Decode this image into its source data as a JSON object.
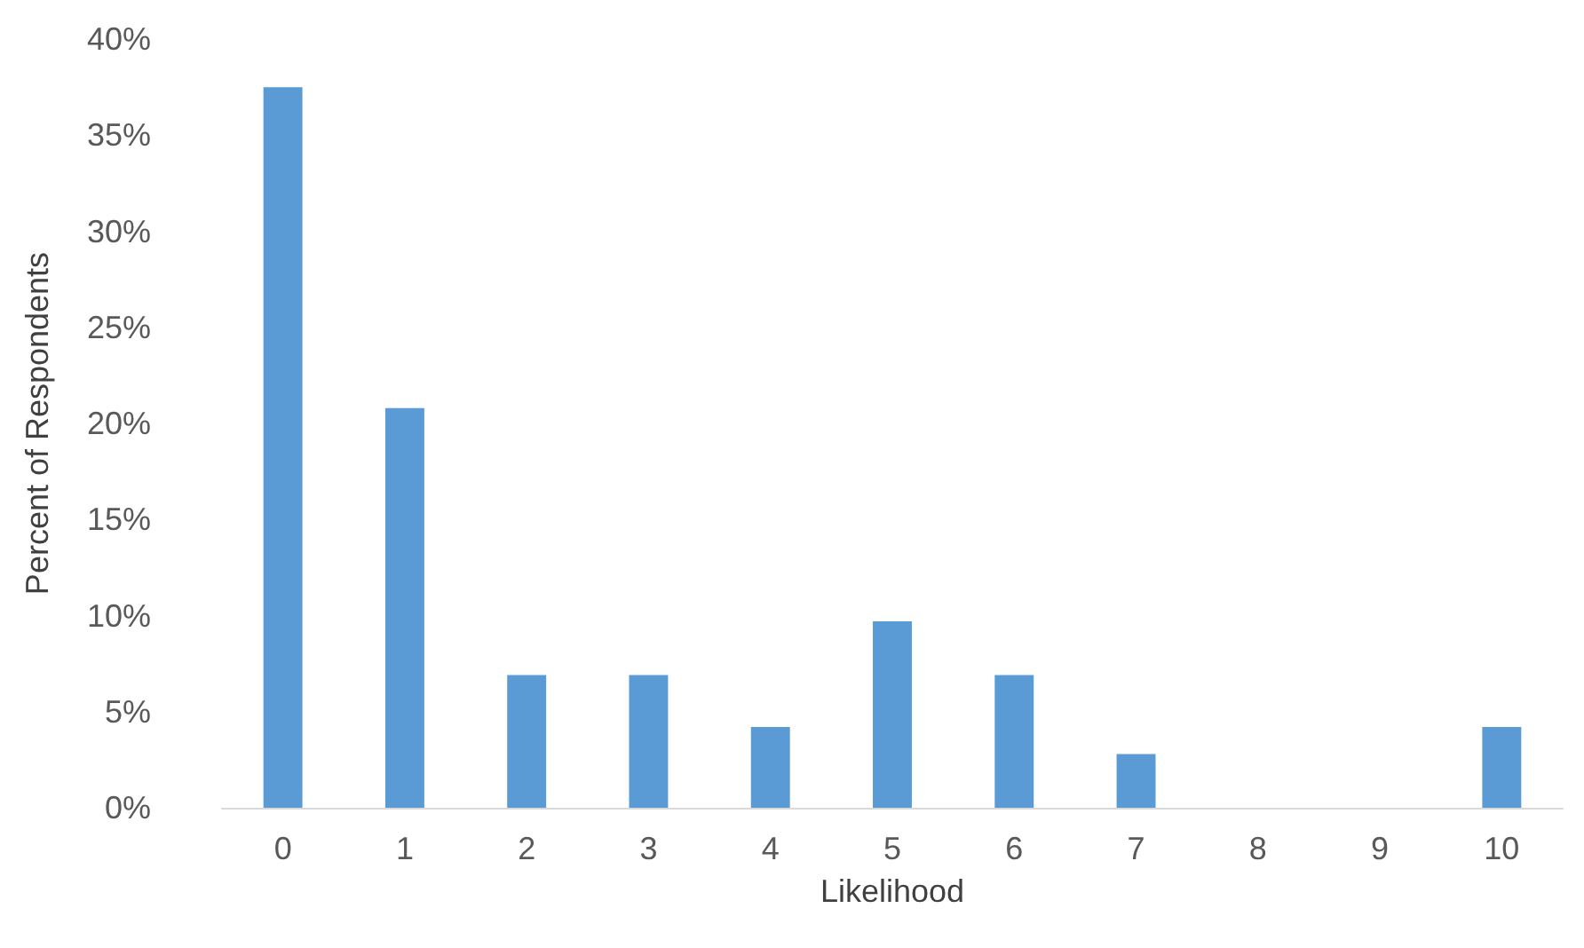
{
  "chart_data": {
    "type": "bar",
    "xlabel": "Likelihood",
    "ylabel": "Percent of Respondents",
    "categories": [
      "0",
      "1",
      "2",
      "3",
      "4",
      "5",
      "6",
      "7",
      "8",
      "9",
      "10"
    ],
    "values": [
      37.5,
      20.8,
      6.9,
      6.9,
      4.2,
      9.7,
      6.9,
      2.8,
      0,
      0,
      4.2
    ],
    "color": "#5b9bd5",
    "ylim": [
      0,
      40
    ],
    "yticks": [
      {
        "value": 0,
        "label": "0%"
      },
      {
        "value": 5,
        "label": "5%"
      },
      {
        "value": 10,
        "label": "10%"
      },
      {
        "value": 15,
        "label": "15%"
      },
      {
        "value": 20,
        "label": "20%"
      },
      {
        "value": 25,
        "label": "25%"
      },
      {
        "value": 30,
        "label": "30%"
      },
      {
        "value": 35,
        "label": "35%"
      },
      {
        "value": 40,
        "label": "40%"
      }
    ],
    "grid": false
  }
}
